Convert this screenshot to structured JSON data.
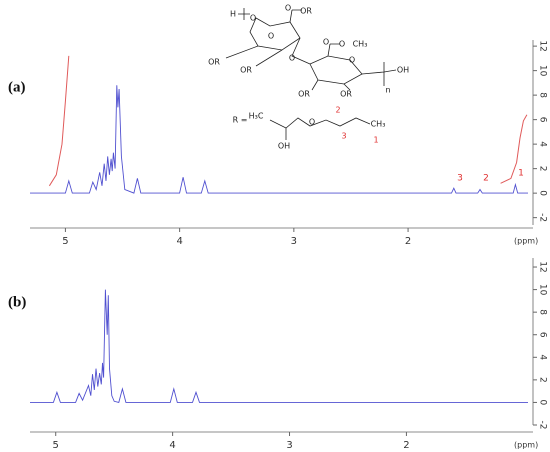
{
  "chart_data": [
    {
      "type": "line",
      "panel_label": "(a)",
      "xlabel": "(ppm)",
      "xlim": [
        5.31,
        0.95
      ],
      "xticks": [
        5,
        4,
        3,
        2
      ],
      "ylim": [
        -2.6,
        12.5
      ],
      "yticks": [
        -2,
        0,
        2,
        4,
        6,
        8,
        10,
        12
      ],
      "series": [
        {
          "color": "#5050d0",
          "x": [
            5.31,
            5.0,
            4.97,
            4.94,
            4.79,
            4.76,
            4.73,
            4.7,
            4.68,
            4.66,
            4.645,
            4.63,
            4.615,
            4.6,
            4.59,
            4.58,
            4.565,
            4.55,
            4.54,
            4.53,
            4.51,
            4.48,
            4.4,
            4.37,
            4.34,
            4.0,
            3.97,
            3.94,
            3.81,
            3.78,
            3.75,
            1.62,
            1.6,
            1.58,
            1.39,
            1.37,
            1.35,
            1.08,
            1.06,
            1.04,
            0.95
          ],
          "values": [
            0,
            0,
            1.0,
            0,
            0,
            0.9,
            0.3,
            1.7,
            0.6,
            2.4,
            1.0,
            3.0,
            1.5,
            2.8,
            1.8,
            3.3,
            2.0,
            8.8,
            7.0,
            8.5,
            3.0,
            0.3,
            0,
            1.2,
            0,
            0,
            1.3,
            0,
            0,
            1.0,
            0,
            0,
            0.4,
            0,
            0,
            0.3,
            0,
            0,
            0.7,
            0,
            0
          ]
        },
        {
          "color": "#e05a5a",
          "x": [
            5.14,
            5.08,
            5.03,
            5.0,
            4.97
          ],
          "values": [
            0.6,
            1.5,
            4,
            7.5,
            11.2
          ]
        },
        {
          "color": "#e05a5a",
          "x": [
            1.19,
            1.1,
            1.05,
            1.02,
            0.99,
            0.96
          ],
          "values": [
            0.8,
            1.2,
            2.5,
            4.5,
            5.9,
            6.4
          ]
        }
      ],
      "peak_labels": [
        "3",
        "2",
        "1"
      ],
      "structure_labels": [
        "H",
        "O",
        "O",
        "OR",
        "O",
        "OR",
        "OR",
        "O",
        "O",
        "O",
        "CH₃",
        "O",
        "OH",
        "OR",
        "OR",
        "n",
        "R =",
        "H₃C",
        "OH",
        "O",
        "CH₃",
        "3",
        "2",
        "1"
      ]
    },
    {
      "type": "line",
      "panel_label": "(b)",
      "xlabel": "(ppm)",
      "xlim": [
        5.22,
        0.96
      ],
      "xticks": [
        5,
        4,
        3,
        2
      ],
      "ylim": [
        -2.0,
        12.8
      ],
      "yticks": [
        -2,
        0,
        2,
        4,
        6,
        8,
        10,
        12
      ],
      "series": [
        {
          "color": "#5050d0",
          "x": [
            5.22,
            5.02,
            4.99,
            4.96,
            4.83,
            4.8,
            4.77,
            4.72,
            4.7,
            4.685,
            4.67,
            4.655,
            4.64,
            4.625,
            4.61,
            4.6,
            4.59,
            4.575,
            4.56,
            4.55,
            4.54,
            4.52,
            4.5,
            4.46,
            4.43,
            4.4,
            4.02,
            3.99,
            3.96,
            3.83,
            3.8,
            3.77,
            0.96
          ],
          "values": [
            0,
            0,
            0.9,
            0,
            0,
            0.8,
            0.2,
            1.5,
            0.6,
            2.5,
            1.1,
            3.0,
            1.4,
            2.6,
            1.6,
            3.5,
            2.2,
            10.0,
            6.0,
            9.5,
            3.0,
            0.6,
            0.1,
            0,
            1.2,
            0,
            0,
            1.2,
            0,
            0,
            0.9,
            0,
            0
          ]
        }
      ]
    }
  ]
}
